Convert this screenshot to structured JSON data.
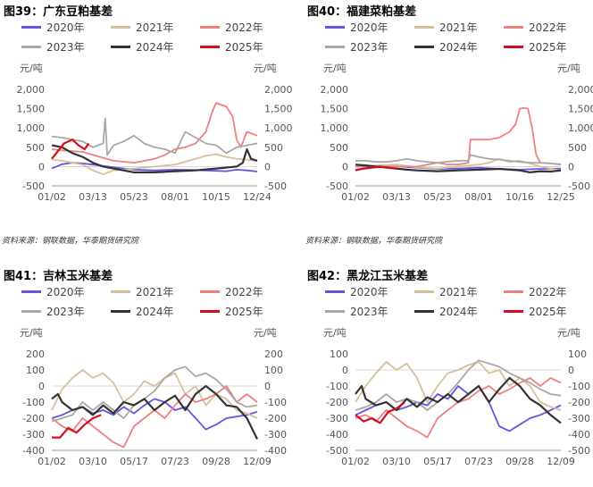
{
  "source_note": "资料来源：钢联数据，华泰期货研究院",
  "colors": {
    "2020年": "#6655e0",
    "2021年": "#d7bf9c",
    "2022年": "#f08080",
    "2023年": "#a8a8a8",
    "2024年": "#333333",
    "2025年": "#d01020"
  },
  "chart_data": [
    {
      "type": "line",
      "title": "图39：广东豆粕基差",
      "unit_left": "元/吨",
      "unit_right": "元/吨",
      "ylim": [
        -500,
        2000
      ],
      "yticks": [
        -500,
        0,
        500,
        1000,
        1500,
        2000
      ],
      "xticks": [
        "01/02",
        "03/13",
        "05/23",
        "08/01",
        "10/15",
        "12/24"
      ],
      "series": [
        {
          "name": "2020年",
          "x": [
            0,
            0.05,
            0.1,
            0.15,
            0.2,
            0.3,
            0.4,
            0.5,
            0.6,
            0.7,
            0.8,
            0.85,
            0.9,
            0.95,
            1
          ],
          "values": [
            -50,
            60,
            100,
            80,
            50,
            -20,
            -80,
            -100,
            -80,
            -90,
            -110,
            -120,
            -80,
            -100,
            -130
          ]
        },
        {
          "name": "2021年",
          "x": [
            0,
            0.05,
            0.1,
            0.15,
            0.2,
            0.25,
            0.3,
            0.4,
            0.5,
            0.6,
            0.7,
            0.75,
            0.8,
            0.85,
            0.9,
            0.95,
            1
          ],
          "values": [
            180,
            150,
            100,
            50,
            -100,
            -200,
            -100,
            -50,
            0,
            50,
            200,
            280,
            320,
            250,
            200,
            180,
            150
          ]
        },
        {
          "name": "2022年",
          "x": [
            0,
            0.05,
            0.1,
            0.15,
            0.2,
            0.3,
            0.4,
            0.5,
            0.55,
            0.6,
            0.65,
            0.7,
            0.75,
            0.78,
            0.8,
            0.85,
            0.88,
            0.9,
            0.92,
            0.95,
            1
          ],
          "values": [
            450,
            420,
            400,
            380,
            300,
            150,
            100,
            200,
            300,
            450,
            500,
            600,
            900,
            1400,
            1650,
            1550,
            1300,
            700,
            500,
            900,
            800
          ]
        },
        {
          "name": "2023年",
          "x": [
            0,
            0.05,
            0.1,
            0.15,
            0.2,
            0.25,
            0.26,
            0.27,
            0.3,
            0.35,
            0.4,
            0.45,
            0.5,
            0.55,
            0.6,
            0.65,
            0.7,
            0.75,
            0.8,
            0.85,
            0.9,
            0.95,
            1
          ],
          "values": [
            780,
            750,
            700,
            650,
            500,
            600,
            1250,
            300,
            550,
            650,
            800,
            600,
            500,
            450,
            350,
            900,
            750,
            600,
            550,
            350,
            500,
            550,
            600
          ]
        },
        {
          "name": "2024年",
          "x": [
            0,
            0.05,
            0.1,
            0.15,
            0.2,
            0.25,
            0.3,
            0.35,
            0.4,
            0.5,
            0.6,
            0.7,
            0.8,
            0.9,
            0.93,
            0.95,
            0.97,
            1
          ],
          "values": [
            550,
            500,
            350,
            250,
            100,
            0,
            -50,
            -100,
            -150,
            -150,
            -120,
            -100,
            -50,
            0,
            100,
            450,
            200,
            150
          ]
        },
        {
          "name": "2025年",
          "x": [
            0,
            0.03,
            0.06,
            0.1,
            0.13,
            0.16,
            0.18
          ],
          "values": [
            200,
            400,
            600,
            700,
            550,
            450,
            600
          ]
        }
      ]
    },
    {
      "type": "line",
      "title": "图40：福建菜粕基差",
      "unit_left": "元/吨",
      "unit_right": "元/吨",
      "ylim": [
        -500,
        2000
      ],
      "yticks": [
        -500,
        0,
        500,
        1000,
        1500,
        2000
      ],
      "xticks": [
        "01/02",
        "03/13",
        "05/23",
        "08/01",
        "10/16",
        "12/25"
      ],
      "series": [
        {
          "name": "2020年",
          "x": [
            0,
            0.1,
            0.2,
            0.3,
            0.4,
            0.5,
            0.6,
            0.7,
            0.8,
            0.9,
            1
          ],
          "values": [
            -80,
            -20,
            10,
            -30,
            -60,
            -50,
            -30,
            -60,
            -80,
            -60,
            -50
          ]
        },
        {
          "name": "2021年",
          "x": [
            0,
            0.1,
            0.2,
            0.3,
            0.4,
            0.5,
            0.6,
            0.65,
            0.7,
            0.75,
            0.8,
            0.85,
            0.9,
            0.95,
            1
          ],
          "values": [
            0,
            30,
            50,
            -20,
            -50,
            0,
            50,
            100,
            200,
            120,
            150,
            80,
            0,
            -50,
            -100
          ]
        },
        {
          "name": "2022年",
          "x": [
            0,
            0.05,
            0.1,
            0.15,
            0.2,
            0.25,
            0.3,
            0.35,
            0.4,
            0.45,
            0.5,
            0.55,
            0.56,
            0.6,
            0.65,
            0.7,
            0.75,
            0.78,
            0.8,
            0.82,
            0.84,
            0.86,
            0.88,
            0.9,
            0.95,
            1
          ],
          "values": [
            0,
            0,
            0,
            0,
            0,
            0,
            0,
            50,
            100,
            50,
            50,
            100,
            700,
            700,
            700,
            750,
            900,
            1100,
            1500,
            1520,
            1500,
            1000,
            300,
            100,
            80,
            50
          ]
        },
        {
          "name": "2023年",
          "x": [
            0,
            0.05,
            0.1,
            0.15,
            0.2,
            0.25,
            0.3,
            0.35,
            0.4,
            0.45,
            0.5,
            0.55,
            0.56,
            0.6,
            0.65,
            0.7,
            0.75,
            0.8,
            0.85,
            0.9,
            0.95,
            1
          ],
          "values": [
            150,
            150,
            120,
            120,
            150,
            200,
            150,
            120,
            100,
            130,
            150,
            150,
            300,
            250,
            200,
            180,
            150,
            120,
            100,
            100,
            80,
            60
          ]
        },
        {
          "name": "2024年",
          "x": [
            0,
            0.05,
            0.1,
            0.15,
            0.2,
            0.25,
            0.3,
            0.4,
            0.5,
            0.6,
            0.7,
            0.8,
            0.85,
            0.9,
            0.95,
            1
          ],
          "values": [
            50,
            30,
            0,
            -20,
            -50,
            -80,
            -100,
            -120,
            -100,
            -80,
            -60,
            -100,
            -150,
            -120,
            -130,
            -100
          ]
        },
        {
          "name": "2025年",
          "x": [
            0,
            0.04,
            0.08,
            0.12,
            0.15,
            0.18,
            0.2
          ],
          "values": [
            -100,
            -50,
            -20,
            0,
            -30,
            -40,
            -60
          ]
        }
      ]
    },
    {
      "type": "line",
      "title": "图41：吉林玉米基差",
      "unit_left": "元/吨",
      "unit_right": "元/吨",
      "ylim": [
        -400,
        200
      ],
      "yticks": [
        -400,
        -300,
        -200,
        -100,
        0,
        100,
        200
      ],
      "xticks": [
        "01/02",
        "03/10",
        "05/17",
        "07/23",
        "09/28",
        "12/09"
      ],
      "series": [
        {
          "name": "2020年",
          "x": [
            0,
            0.05,
            0.1,
            0.15,
            0.2,
            0.25,
            0.3,
            0.35,
            0.4,
            0.45,
            0.5,
            0.55,
            0.6,
            0.65,
            0.7,
            0.75,
            0.8,
            0.85,
            0.9,
            0.95,
            1
          ],
          "values": [
            -200,
            -180,
            -150,
            -130,
            -170,
            -150,
            -180,
            -130,
            -170,
            -120,
            -80,
            -100,
            -150,
            -130,
            -200,
            -270,
            -240,
            -200,
            -190,
            -180,
            -160
          ]
        },
        {
          "name": "2021年",
          "x": [
            0,
            0.05,
            0.1,
            0.15,
            0.2,
            0.25,
            0.3,
            0.35,
            0.4,
            0.45,
            0.5,
            0.55,
            0.6,
            0.65,
            0.7,
            0.75,
            0.8,
            0.85,
            0.9,
            0.95,
            1
          ],
          "values": [
            -150,
            -20,
            50,
            100,
            50,
            80,
            20,
            -100,
            -50,
            30,
            0,
            50,
            80,
            -50,
            0,
            -120,
            -50,
            -80,
            -150,
            -170,
            -200
          ]
        },
        {
          "name": "2022年",
          "x": [
            0,
            0.05,
            0.1,
            0.15,
            0.2,
            0.25,
            0.3,
            0.35,
            0.4,
            0.45,
            0.5,
            0.55,
            0.6,
            0.65,
            0.7,
            0.75,
            0.8,
            0.85,
            0.9,
            0.95,
            1
          ],
          "values": [
            -200,
            -250,
            -280,
            -200,
            -250,
            -300,
            -350,
            -380,
            -250,
            -200,
            -150,
            -200,
            -120,
            -50,
            -100,
            -80,
            -50,
            0,
            -100,
            -50,
            -100
          ]
        },
        {
          "name": "2023年",
          "x": [
            0,
            0.05,
            0.1,
            0.15,
            0.2,
            0.25,
            0.3,
            0.35,
            0.4,
            0.45,
            0.5,
            0.55,
            0.6,
            0.65,
            0.7,
            0.75,
            0.8,
            0.85,
            0.9,
            0.95,
            1
          ],
          "values": [
            -220,
            -200,
            -180,
            -100,
            -150,
            -100,
            -150,
            -200,
            -120,
            -80,
            -30,
            50,
            100,
            120,
            60,
            80,
            40,
            -20,
            -100,
            -130,
            -120
          ]
        },
        {
          "name": "2024年",
          "x": [
            0,
            0.03,
            0.05,
            0.1,
            0.15,
            0.2,
            0.25,
            0.3,
            0.35,
            0.4,
            0.45,
            0.5,
            0.55,
            0.6,
            0.65,
            0.7,
            0.75,
            0.8,
            0.85,
            0.9,
            0.95,
            1
          ],
          "values": [
            -80,
            -50,
            -100,
            -150,
            -130,
            -180,
            -120,
            -170,
            -100,
            -120,
            -80,
            -150,
            -100,
            -60,
            -150,
            -50,
            0,
            -50,
            -120,
            -130,
            -200,
            -330
          ]
        },
        {
          "name": "2025年",
          "x": [
            0,
            0.04,
            0.08,
            0.12,
            0.16,
            0.2,
            0.24
          ],
          "values": [
            -320,
            -320,
            -260,
            -290,
            -240,
            -200,
            -180
          ]
        }
      ]
    },
    {
      "type": "line",
      "title": "图42：黑龙江玉米基差",
      "unit_left": "元/吨",
      "unit_right": "元/吨",
      "ylim": [
        -500,
        100
      ],
      "yticks": [
        -500,
        -400,
        -300,
        -200,
        -100,
        0,
        100
      ],
      "xticks": [
        "01/02",
        "03/10",
        "05/17",
        "07/23",
        "09/28",
        "12/09"
      ],
      "series": [
        {
          "name": "2020年",
          "x": [
            0,
            0.05,
            0.1,
            0.15,
            0.2,
            0.25,
            0.3,
            0.35,
            0.4,
            0.45,
            0.5,
            0.55,
            0.6,
            0.65,
            0.7,
            0.75,
            0.8,
            0.85,
            0.9,
            0.95,
            1
          ],
          "values": [
            -280,
            -250,
            -220,
            -200,
            -250,
            -230,
            -200,
            -220,
            -150,
            -180,
            -100,
            -150,
            -100,
            -200,
            -350,
            -380,
            -340,
            -300,
            -280,
            -250,
            -220
          ]
        },
        {
          "name": "2021年",
          "x": [
            0,
            0.05,
            0.1,
            0.15,
            0.2,
            0.25,
            0.3,
            0.35,
            0.4,
            0.45,
            0.5,
            0.55,
            0.6,
            0.65,
            0.7,
            0.75,
            0.8,
            0.85,
            0.9,
            0.95,
            1
          ],
          "values": [
            -200,
            -100,
            -20,
            50,
            0,
            40,
            -50,
            -200,
            -100,
            -20,
            0,
            30,
            50,
            -20,
            0,
            -100,
            -50,
            -100,
            -200,
            -230,
            -250
          ]
        },
        {
          "name": "2022年",
          "x": [
            0,
            0.05,
            0.1,
            0.15,
            0.2,
            0.25,
            0.3,
            0.35,
            0.4,
            0.45,
            0.5,
            0.55,
            0.6,
            0.65,
            0.7,
            0.75,
            0.8,
            0.85,
            0.9,
            0.95,
            1
          ],
          "values": [
            -300,
            -280,
            -320,
            -250,
            -300,
            -350,
            -380,
            -420,
            -300,
            -250,
            -200,
            -180,
            -130,
            -100,
            -150,
            -120,
            -80,
            -50,
            -100,
            -50,
            -80
          ]
        },
        {
          "name": "2023年",
          "x": [
            0,
            0.05,
            0.1,
            0.15,
            0.2,
            0.25,
            0.3,
            0.35,
            0.4,
            0.45,
            0.5,
            0.55,
            0.6,
            0.65,
            0.7,
            0.75,
            0.8,
            0.85,
            0.9,
            0.95,
            1
          ],
          "values": [
            -250,
            -230,
            -200,
            -150,
            -200,
            -180,
            -200,
            -250,
            -200,
            -150,
            -80,
            0,
            60,
            40,
            20,
            -20,
            -50,
            -80,
            -120,
            -150,
            -160
          ]
        },
        {
          "name": "2024年",
          "x": [
            0,
            0.03,
            0.05,
            0.1,
            0.15,
            0.2,
            0.25,
            0.3,
            0.35,
            0.4,
            0.45,
            0.5,
            0.55,
            0.6,
            0.65,
            0.7,
            0.75,
            0.8,
            0.85,
            0.9,
            0.95,
            1
          ],
          "values": [
            -150,
            -100,
            -180,
            -220,
            -200,
            -250,
            -180,
            -230,
            -170,
            -200,
            -150,
            -200,
            -150,
            -100,
            -200,
            -120,
            -50,
            -100,
            -180,
            -220,
            -280,
            -330
          ]
        },
        {
          "name": "2025年",
          "x": [
            0,
            0.04,
            0.08,
            0.12,
            0.16,
            0.2,
            0.24
          ],
          "values": [
            -280,
            -320,
            -300,
            -330,
            -260,
            -240,
            -200
          ]
        }
      ]
    }
  ]
}
